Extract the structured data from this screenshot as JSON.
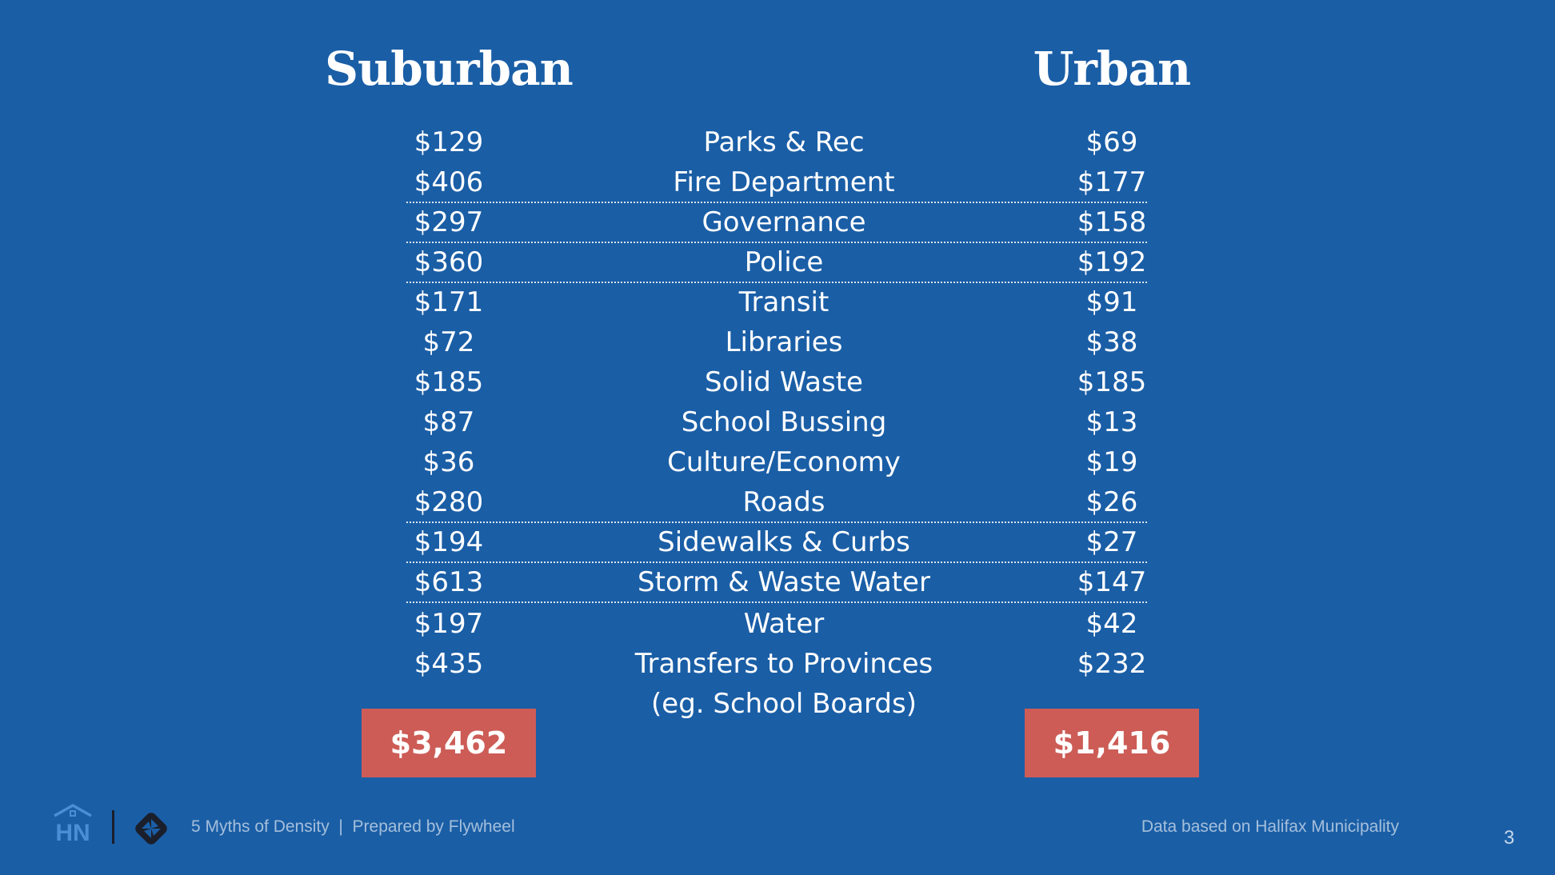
{
  "headers": {
    "suburban": "Suburban",
    "urban": "Urban"
  },
  "rows": [
    {
      "category": "Parks & Rec",
      "suburban": "$129",
      "urban": "$69"
    },
    {
      "category": "Fire Department",
      "suburban": "$406",
      "urban": "$177"
    },
    {
      "category": "Governance",
      "suburban": "$297",
      "urban": "$158"
    },
    {
      "category": "Police",
      "suburban": "$360",
      "urban": "$192"
    },
    {
      "category": "Transit",
      "suburban": "$171",
      "urban": "$91"
    },
    {
      "category": "Libraries",
      "suburban": "$72",
      "urban": "$38"
    },
    {
      "category": "Solid Waste",
      "suburban": "$185",
      "urban": "$185"
    },
    {
      "category": "School Bussing",
      "suburban": "$87",
      "urban": "$13"
    },
    {
      "category": "Culture/Economy",
      "suburban": "$36",
      "urban": "$19"
    },
    {
      "category": "Roads",
      "suburban": "$280",
      "urban": "$26"
    },
    {
      "category": "Sidewalks & Curbs",
      "suburban": "$194",
      "urban": "$27"
    },
    {
      "category": "Storm & Waste Water",
      "suburban": "$613",
      "urban": "$147"
    },
    {
      "category": "Water",
      "suburban": "$197",
      "urban": "$42"
    },
    {
      "category": "Transfers to Provinces",
      "suburban": "$435",
      "urban": "$232"
    }
  ],
  "last_row_note": "(eg. School Boards)",
  "totals": {
    "suburban": "$3,462",
    "urban": "$1,416"
  },
  "footer": {
    "left": "5 Myths of Density  |  Prepared by Flywheel",
    "right": "Data based on Halifax Municipality",
    "page_number": "3"
  },
  "logos": {
    "left": "HN",
    "right_icon": "flywheel-icon"
  },
  "colors": {
    "background": "#1a5ea6",
    "total_box": "#cd5c56"
  }
}
